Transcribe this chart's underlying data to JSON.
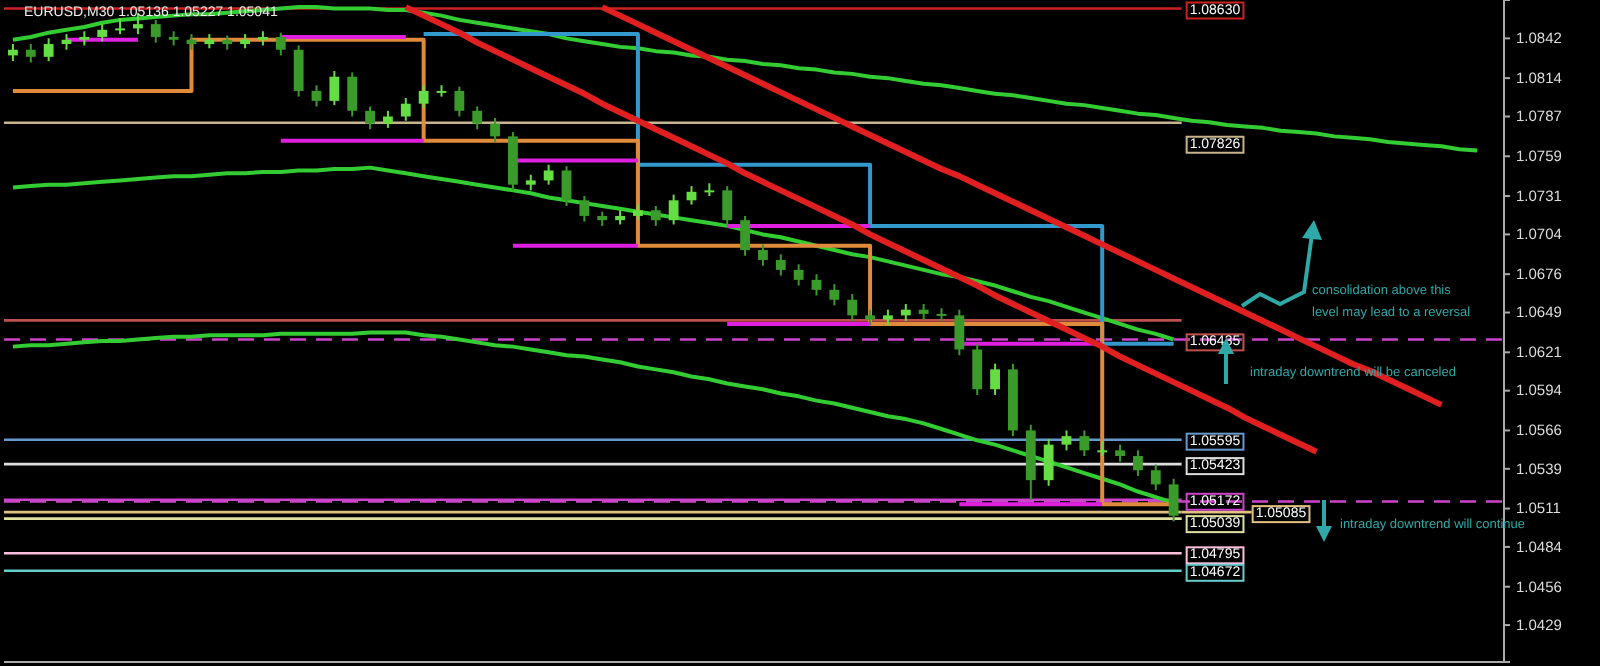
{
  "chart_data": {
    "type": "candlestick",
    "title": "EURUSD,M30 1.05136 1.05227 1.05041",
    "categories": [
      null,
      null,
      null,
      null,
      null,
      null,
      null,
      null,
      null,
      null,
      null,
      null,
      null,
      null,
      null,
      null,
      null,
      null,
      null,
      null,
      null,
      null,
      null,
      null,
      null,
      null,
      null,
      null,
      null,
      null,
      null,
      null,
      null,
      null,
      null,
      null,
      null,
      null,
      null,
      null,
      null,
      null,
      null,
      null,
      null,
      null,
      null,
      null,
      null,
      null,
      null,
      null,
      null,
      null,
      null,
      null,
      null,
      null,
      null,
      null,
      null,
      null,
      null,
      null,
      null,
      null,
      null,
      null,
      null,
      null,
      null,
      null,
      null,
      null,
      null,
      null,
      null,
      null,
      null,
      null,
      null,
      null,
      null,
      null
    ],
    "ylim": [
      1.0403,
      1.0869
    ],
    "yticks": [
      1.0842,
      1.0814,
      1.0787,
      1.0759,
      1.0731,
      1.0704,
      1.0676,
      1.0649,
      1.0621,
      1.0594,
      1.0566,
      1.0539,
      1.0511,
      1.0484,
      1.0456,
      1.0429
    ],
    "tick_labels": "y",
    "series": [
      {
        "type": "line",
        "color": "#33cc33",
        "values": [
          1.0841,
          1.0843,
          1.0846,
          1.0848,
          1.085,
          1.0853,
          1.0855,
          1.0856,
          1.0857,
          1.0858,
          1.0859,
          1.0859,
          1.086,
          1.0861,
          1.0862,
          1.0863,
          1.0864,
          1.0864,
          1.0863,
          1.0863,
          1.0863,
          1.0862,
          1.0862,
          1.086,
          1.0858,
          1.0855,
          1.0853,
          1.0851,
          1.0849,
          1.0847,
          1.0845,
          1.0842,
          1.084,
          1.0838,
          1.0836,
          1.0835,
          1.0833,
          1.0832,
          1.083,
          1.0829,
          1.0827,
          1.0826,
          1.0824,
          1.0823,
          1.0821,
          1.082,
          1.0818,
          1.0817,
          1.0815,
          1.0814,
          1.0812,
          1.081,
          1.0809,
          1.0807,
          1.0805,
          1.0803,
          1.0802,
          1.08,
          1.0798,
          1.0796,
          1.0795,
          1.0793,
          1.0791,
          1.0789,
          1.0788,
          1.0786,
          1.0784,
          1.0783,
          1.0781,
          1.078,
          1.0779,
          1.0777,
          1.0776,
          1.0775,
          1.0773,
          1.0772,
          1.0771,
          1.0769,
          1.0768,
          1.0767,
          1.0766,
          1.0764,
          1.0763,
          null
        ]
      },
      {
        "type": "line",
        "color": "#33cc33",
        "values": [
          1.0737,
          1.0738,
          1.0739,
          1.0739,
          1.074,
          1.0741,
          1.0742,
          1.0743,
          1.0744,
          1.0745,
          1.0745,
          1.0746,
          1.0747,
          1.0747,
          1.0748,
          1.0748,
          1.0749,
          1.0749,
          1.075,
          1.075,
          1.0751,
          1.0749,
          1.0747,
          1.0745,
          1.0743,
          1.0741,
          1.0739,
          1.0737,
          1.0735,
          1.0733,
          1.073,
          1.0728,
          1.0726,
          1.0724,
          1.0722,
          1.072,
          1.0718,
          1.0716,
          1.0714,
          1.0712,
          1.071,
          1.0707,
          1.0704,
          1.0702,
          1.0699,
          1.0696,
          1.0693,
          1.069,
          1.0688,
          1.0685,
          1.0682,
          1.0679,
          1.0676,
          1.0674,
          1.0671,
          1.0668,
          1.0664,
          1.066,
          1.0657,
          1.0653,
          1.0649,
          1.0645,
          1.0641,
          1.0637,
          1.0634,
          1.063,
          null,
          null,
          null,
          null,
          null,
          null,
          null,
          null,
          null,
          null,
          null,
          null,
          null,
          null,
          null,
          null,
          null,
          null
        ]
      },
      {
        "type": "line",
        "color": "#33cc33",
        "values": [
          1.0625,
          1.0626,
          1.0626,
          1.0627,
          1.0628,
          1.0629,
          1.0629,
          1.063,
          1.0631,
          1.0632,
          1.0632,
          1.0633,
          1.0633,
          1.0633,
          1.0633,
          1.0634,
          1.0634,
          1.0634,
          1.0634,
          1.0634,
          1.0635,
          1.0635,
          1.0635,
          1.0633,
          1.0632,
          1.063,
          1.0628,
          1.0626,
          1.0625,
          1.0623,
          1.0621,
          1.0619,
          1.0618,
          1.0616,
          1.0614,
          1.0611,
          1.0609,
          1.0607,
          1.0604,
          1.0602,
          1.0599,
          1.0597,
          1.0595,
          1.0592,
          1.059,
          1.0587,
          1.0585,
          1.0582,
          1.0579,
          1.0576,
          1.0574,
          1.0571,
          1.0567,
          1.0563,
          1.0559,
          1.0556,
          1.0552,
          1.0548,
          1.0544,
          1.054,
          1.0536,
          1.0532,
          1.0528,
          1.0523,
          1.0519,
          1.0515,
          null,
          null,
          null,
          null,
          null,
          null,
          null,
          null,
          null,
          null,
          null,
          null,
          null,
          null,
          null,
          null,
          null,
          null
        ]
      },
      {
        "type": "step",
        "color": "#3399cc",
        "values": [
          null,
          null,
          null,
          null,
          null,
          null,
          null,
          null,
          null,
          null,
          null,
          null,
          null,
          null,
          null,
          null,
          null,
          null,
          null,
          null,
          null,
          null,
          null,
          1.0845,
          1.0845,
          1.0845,
          1.0845,
          1.0845,
          1.0845,
          1.0845,
          1.0845,
          1.0845,
          1.0845,
          1.0845,
          1.0845,
          1.0753,
          1.0753,
          1.0753,
          1.0753,
          1.0753,
          1.0753,
          1.0753,
          1.0753,
          1.0753,
          1.0753,
          1.0753,
          1.0753,
          1.0753,
          1.071,
          1.071,
          1.071,
          1.071,
          1.071,
          1.071,
          1.071,
          1.071,
          1.071,
          1.071,
          1.071,
          1.071,
          1.071,
          1.0627,
          1.0627,
          1.0627,
          1.0627,
          1.0627,
          null,
          null,
          null,
          null,
          null,
          null,
          null,
          null,
          null,
          null,
          null,
          null,
          null,
          null,
          null,
          null,
          null,
          null
        ]
      },
      {
        "type": "step",
        "color": "#e08a3c",
        "values": [
          1.0805,
          1.0805,
          1.0805,
          1.0805,
          1.0805,
          1.0805,
          1.0805,
          1.0805,
          1.0805,
          1.0805,
          1.0841,
          1.0841,
          1.0841,
          1.0841,
          1.0841,
          1.0841,
          1.0841,
          1.0841,
          1.0841,
          1.0841,
          1.0841,
          1.0841,
          1.0841,
          1.077,
          1.077,
          1.077,
          1.077,
          1.077,
          1.077,
          1.077,
          1.077,
          1.077,
          1.077,
          1.077,
          1.077,
          1.0696,
          1.0696,
          1.0696,
          1.0696,
          1.0696,
          1.0696,
          1.0696,
          1.0696,
          1.0696,
          1.0696,
          1.0696,
          1.0696,
          1.0696,
          1.0641,
          1.0641,
          1.0641,
          1.0641,
          1.0641,
          1.0641,
          1.0641,
          1.0641,
          1.0641,
          1.0641,
          1.0641,
          1.0641,
          1.0641,
          1.0514,
          1.0514,
          1.0514,
          1.0514,
          1.0514,
          null,
          null,
          null,
          null,
          null,
          null,
          null,
          null,
          null,
          null,
          null,
          null,
          null,
          null,
          null,
          null,
          null,
          null
        ]
      },
      {
        "type": "line",
        "color": "#e020e0",
        "values": [
          null,
          null,
          null,
          1.0841,
          1.0841,
          1.0841,
          1.0841,
          1.0841,
          null,
          null,
          null,
          null,
          null,
          null,
          null,
          1.0843,
          1.0843,
          1.0843,
          1.0843,
          1.0843,
          1.0843,
          1.0843,
          1.0843,
          null,
          null,
          null,
          null,
          null,
          1.0756,
          1.0756,
          1.0756,
          1.0756,
          1.0756,
          1.0756,
          1.0756,
          1.0756,
          null,
          null,
          null,
          null,
          1.071,
          1.071,
          1.071,
          1.071,
          1.071,
          1.071,
          1.071,
          1.071,
          1.071,
          null,
          null,
          null,
          null,
          1.0627,
          1.0627,
          1.0627,
          1.0627,
          1.0627,
          1.0627,
          1.0627,
          1.0627,
          1.0627,
          null,
          null,
          null,
          null,
          null,
          null,
          null,
          null,
          null,
          null,
          null,
          null,
          null,
          null,
          null,
          null,
          null,
          null,
          null,
          null,
          null,
          null
        ]
      },
      {
        "type": "line",
        "color": "#e020e0",
        "values": [
          null,
          null,
          null,
          null,
          null,
          null,
          null,
          null,
          null,
          null,
          null,
          null,
          null,
          null,
          null,
          1.077,
          1.077,
          1.077,
          1.077,
          1.077,
          1.077,
          1.077,
          1.077,
          1.077,
          null,
          null,
          null,
          null,
          1.0696,
          1.0696,
          1.0696,
          1.0696,
          1.0696,
          1.0696,
          1.0696,
          1.0696,
          null,
          null,
          null,
          null,
          1.0641,
          1.0641,
          1.0641,
          1.0641,
          1.0641,
          1.0641,
          1.0641,
          1.0641,
          1.0641,
          null,
          null,
          null,
          null,
          1.0514,
          1.0514,
          1.0514,
          1.0514,
          1.0514,
          1.0514,
          1.0514,
          1.0514,
          1.0514,
          null,
          null,
          null,
          null,
          null,
          null,
          null,
          null,
          null,
          null,
          null,
          null,
          null,
          null,
          null,
          null,
          null,
          null,
          null,
          null,
          null,
          null
        ]
      },
      {
        "type": "line",
        "color": "#e02020",
        "values": [
          null,
          null,
          null,
          null,
          null,
          null,
          null,
          null,
          null,
          null,
          null,
          null,
          null,
          null,
          null,
          null,
          null,
          null,
          null,
          null,
          null,
          null,
          1.0864,
          1.0858,
          1.0852,
          1.0846,
          1.0839,
          1.0833,
          1.0827,
          1.0821,
          1.0815,
          1.0809,
          1.0803,
          1.0796,
          1.079,
          1.0784,
          1.0778,
          1.0772,
          1.0766,
          1.076,
          1.0754,
          1.0747,
          1.0741,
          1.0735,
          1.0729,
          1.0723,
          1.0717,
          1.0711,
          1.0704,
          1.0698,
          1.0692,
          1.0686,
          1.068,
          1.0674,
          1.0668,
          1.0661,
          1.0655,
          1.0649,
          1.0643,
          1.0637,
          1.0631,
          1.0625,
          1.0618,
          1.0612,
          1.0606,
          1.06,
          1.0594,
          1.0588,
          1.0582,
          1.0575,
          1.0569,
          1.0563,
          1.0557,
          1.0551,
          null,
          null,
          null,
          null,
          null,
          null,
          null,
          null,
          null,
          null
        ]
      },
      {
        "type": "line",
        "color": "#e02020",
        "values": [
          null,
          null,
          null,
          null,
          null,
          null,
          null,
          null,
          null,
          null,
          null,
          null,
          null,
          null,
          null,
          null,
          null,
          null,
          null,
          null,
          null,
          null,
          null,
          null,
          null,
          null,
          null,
          null,
          null,
          null,
          null,
          null,
          null,
          1.0864,
          1.0858,
          1.0852,
          1.0846,
          1.084,
          1.0834,
          1.0828,
          1.0822,
          1.0816,
          1.081,
          1.0804,
          1.0798,
          1.0792,
          1.0786,
          1.078,
          1.0774,
          1.0768,
          1.0762,
          1.0756,
          1.075,
          1.0745,
          1.0739,
          1.0733,
          1.0727,
          1.0721,
          1.0715,
          1.0709,
          1.0703,
          1.0697,
          1.0691,
          1.0685,
          1.0679,
          1.0673,
          1.0667,
          1.0661,
          1.0655,
          1.0649,
          1.0643,
          1.0637,
          1.0631,
          1.0625,
          1.0619,
          1.0613,
          1.0608,
          1.0602,
          1.0596,
          1.059,
          1.0584,
          null,
          null,
          null
        ]
      },
      {
        "colors": [
          "#66dd44",
          "#3a9a2a",
          "#66dd44",
          "#66dd44",
          "#66dd44",
          "#66dd44",
          "#66dd44",
          "#66dd44",
          "#3a9a2a",
          "#3a9a2a",
          "#3a9a2a",
          "#66dd44",
          "#3a9a2a",
          "#66dd44",
          "#66dd44",
          "#3a9a2a",
          "#3a9a2a",
          "#3a9a2a",
          "#66dd44",
          "#3a9a2a",
          "#3a9a2a",
          "#66dd44",
          "#66dd44",
          "#66dd44",
          "#66dd44",
          "#3a9a2a",
          "#3a9a2a",
          "#3a9a2a",
          "#3a9a2a",
          "#66dd44",
          "#66dd44",
          "#3a9a2a",
          "#3a9a2a",
          "#3a9a2a",
          "#66dd44",
          "#66dd44",
          "#3a9a2a",
          "#66dd44",
          "#66dd44",
          "#66dd44",
          "#3a9a2a",
          "#3a9a2a",
          "#3a9a2a",
          "#3a9a2a",
          "#3a9a2a",
          "#3a9a2a",
          "#3a9a2a",
          "#3a9a2a",
          "#3a9a2a",
          "#66dd44",
          "#66dd44",
          "#3a9a2a",
          "#3a9a2a",
          "#3a9a2a",
          "#3a9a2a",
          "#66dd44",
          "#3a9a2a",
          "#3a9a2a",
          "#66dd44",
          "#66dd44",
          "#3a9a2a",
          "#66dd44",
          "#3a9a2a",
          "#3a9a2a",
          "#3a9a2a",
          "#3a9a2a",
          null,
          null,
          null,
          null,
          null,
          null,
          null,
          null,
          null,
          null,
          null,
          null,
          null,
          null,
          null,
          null,
          null,
          null
        ],
        "ohlc": [
          [
            1.083,
            1.0838,
            1.0826,
            1.0834
          ],
          [
            1.0834,
            1.0838,
            1.0825,
            1.0829
          ],
          [
            1.0829,
            1.0842,
            1.0826,
            1.0838
          ],
          [
            1.0838,
            1.0845,
            1.0834,
            1.0841
          ],
          [
            1.0841,
            1.0847,
            1.0837,
            1.0843
          ],
          [
            1.0843,
            1.0852,
            1.084,
            1.0848
          ],
          [
            1.0848,
            1.0856,
            1.0845,
            1.0849
          ],
          [
            1.0849,
            1.086,
            1.0845,
            1.0852
          ],
          [
            1.0852,
            1.0855,
            1.0839,
            1.0843
          ],
          [
            1.0843,
            1.0847,
            1.0837,
            1.0841
          ],
          [
            1.0841,
            1.0845,
            1.0834,
            1.0838
          ],
          [
            1.0838,
            1.0845,
            1.0835,
            1.0841
          ],
          [
            1.0841,
            1.0844,
            1.0834,
            1.0838
          ],
          [
            1.0838,
            1.0845,
            1.0835,
            1.0841
          ],
          [
            1.0841,
            1.0847,
            1.0837,
            1.0843
          ],
          [
            1.0843,
            1.0846,
            1.083,
            1.0834
          ],
          [
            1.0834,
            1.0837,
            1.0801,
            1.0805
          ],
          [
            1.0805,
            1.0809,
            1.0794,
            1.0798
          ],
          [
            1.0798,
            1.0819,
            1.0795,
            1.0815
          ],
          [
            1.0815,
            1.0818,
            1.0787,
            1.0791
          ],
          [
            1.0791,
            1.0794,
            1.0778,
            1.0782
          ],
          [
            1.0782,
            1.0791,
            1.0779,
            1.0787
          ],
          [
            1.0787,
            1.08,
            1.0784,
            1.0796
          ],
          [
            1.0796,
            1.0809,
            1.0793,
            1.0805
          ],
          [
            1.0805,
            1.0809,
            1.0801,
            1.0805
          ],
          [
            1.0805,
            1.0808,
            1.0787,
            1.0791
          ],
          [
            1.0791,
            1.0794,
            1.0778,
            1.0782
          ],
          [
            1.0782,
            1.0786,
            1.0769,
            1.0773
          ],
          [
            1.0773,
            1.0776,
            1.0735,
            1.0739
          ],
          [
            1.0739,
            1.0746,
            1.0735,
            1.0742
          ],
          [
            1.0742,
            1.0753,
            1.0739,
            1.0749
          ],
          [
            1.0749,
            1.0752,
            1.0724,
            1.0728
          ],
          [
            1.0728,
            1.0731,
            1.0713,
            1.0717
          ],
          [
            1.0717,
            1.072,
            1.071,
            1.0714
          ],
          [
            1.0714,
            1.0721,
            1.0711,
            1.0717
          ],
          [
            1.0717,
            1.0725,
            1.0714,
            1.0721
          ],
          [
            1.0721,
            1.0724,
            1.071,
            1.0714
          ],
          [
            1.0714,
            1.0732,
            1.0711,
            1.0728
          ],
          [
            1.0728,
            1.0738,
            1.0725,
            1.0734
          ],
          [
            1.0734,
            1.074,
            1.0731,
            1.0735
          ],
          [
            1.0735,
            1.0738,
            1.071,
            1.0714
          ],
          [
            1.0714,
            1.0717,
            1.0689,
            1.0693
          ],
          [
            1.0693,
            1.0697,
            1.0682,
            1.0686
          ],
          [
            1.0686,
            1.069,
            1.0675,
            1.0679
          ],
          [
            1.0679,
            1.0683,
            1.0668,
            1.0672
          ],
          [
            1.0672,
            1.0676,
            1.0661,
            1.0665
          ],
          [
            1.0665,
            1.0669,
            1.0654,
            1.0658
          ],
          [
            1.0658,
            1.0662,
            1.0643,
            1.0647
          ],
          [
            1.0647,
            1.0651,
            1.064,
            1.0644
          ],
          [
            1.0644,
            1.0651,
            1.064,
            1.0647
          ],
          [
            1.0647,
            1.0655,
            1.0643,
            1.0651
          ],
          [
            1.0651,
            1.0655,
            1.0644,
            1.0648
          ],
          [
            1.0648,
            1.0652,
            1.0643,
            1.0647
          ],
          [
            1.0647,
            1.0651,
            1.0619,
            1.0623
          ],
          [
            1.0623,
            1.0627,
            1.0591,
            1.0595
          ],
          [
            1.0595,
            1.0613,
            1.0591,
            1.0609
          ],
          [
            1.0609,
            1.0613,
            1.0562,
            1.0566
          ],
          [
            1.0566,
            1.057,
            1.0517,
            1.0531
          ],
          [
            1.0531,
            1.056,
            1.0527,
            1.0556
          ],
          [
            1.0556,
            1.0566,
            1.0552,
            1.0562
          ],
          [
            1.0562,
            1.0566,
            1.0548,
            1.0552
          ],
          [
            1.0552,
            1.0558,
            1.0548,
            1.0552
          ],
          [
            1.0552,
            1.0556,
            1.0544,
            1.0548
          ],
          [
            1.0548,
            1.0552,
            1.0534,
            1.0538
          ],
          [
            1.0538,
            1.0542,
            1.0524,
            1.0528
          ],
          [
            1.0528,
            1.0532,
            1.0502,
            1.0506
          ],
          null,
          null,
          null,
          null,
          null,
          null,
          null,
          null,
          null,
          null,
          null,
          null,
          null,
          null,
          null,
          null,
          null,
          null
        ]
      }
    ],
    "ref_lines": [
      {
        "axis": "y",
        "value": 1.0863,
        "label": "1.08630",
        "color": "#cc2222"
      },
      {
        "axis": "y",
        "value": 1.07826,
        "label": "1.07826",
        "color": "#c8b48c"
      },
      {
        "axis": "y",
        "value": 1.06435,
        "label": "1.06435",
        "color": "#c0504d"
      },
      {
        "axis": "y",
        "value": 1.063,
        "label": null,
        "color": "#cc44cc",
        "line_style": "dashed"
      },
      {
        "axis": "y",
        "value": 1.05595,
        "label": "1.05595",
        "color": "#6699cc"
      },
      {
        "axis": "y",
        "value": 1.05423,
        "label": "1.05423",
        "color": "#dddddd"
      },
      {
        "axis": "y",
        "value": 1.05172,
        "label": "1.05172",
        "color": "#cc44cc"
      },
      {
        "axis": "y",
        "value": 1.0516,
        "label": null,
        "color": "#cc44cc",
        "line_style": "dashed"
      },
      {
        "axis": "y",
        "value": 1.05085,
        "label": "1.05085",
        "color": "#e0c080"
      },
      {
        "axis": "y",
        "value": 1.05039,
        "label": "1.05039",
        "color": "#e0e0a0"
      },
      {
        "axis": "y",
        "value": 1.04795,
        "label": "1.04795",
        "color": "#ffc0e0"
      },
      {
        "axis": "y",
        "value": 1.04672,
        "label": "1.04672",
        "color": "#66cccc"
      }
    ],
    "annotations": [
      "consolidation above this level may lead to a reversal",
      "intraday downtrend will be canceled",
      "intraday downtrend will continue"
    ]
  }
}
